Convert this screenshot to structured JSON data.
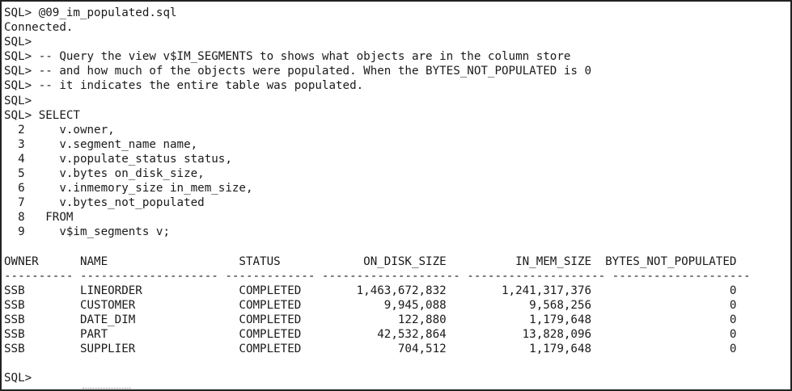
{
  "terminal": {
    "lines": [
      "SQL> @09_im_populated.sql",
      "Connected.",
      "SQL>",
      "SQL> -- Query the view v$IM_SEGMENTS to shows what objects are in the column store",
      "SQL> -- and how much of the objects were populated. When the BYTES_NOT_POPULATED is 0",
      "SQL> -- it indicates the entire table was populated.",
      "SQL>",
      "SQL> SELECT",
      "  2     v.owner,",
      "  3     v.segment_name name,",
      "  4     v.populate_status status,",
      "  5     v.bytes on_disk_size,",
      "  6     v.inmemory_size in_mem_size,",
      "  7     v.bytes_not_populated",
      "  8   FROM",
      "  9     v$im_segments v;",
      "",
      "OWNER      NAME                   STATUS            ON_DISK_SIZE          IN_MEM_SIZE  BYTES_NOT_POPULATED",
      "---------- -------------------- ------------- -------------------- -------------------- --------------------",
      "SSB        LINEORDER              COMPLETED        1,463,672,832        1,241,317,376                    0",
      "SSB        CUSTOMER               COMPLETED            9,945,088            9,568,256                    0",
      "SSB        DATE_DIM               COMPLETED              122,880            1,179,648                    0",
      "SSB        PART                   COMPLETED           42,532,864           13,828,096                    0",
      "SSB        SUPPLIER               COMPLETED              704,512            1,179,648                    0",
      "",
      "SQL>"
    ]
  }
}
